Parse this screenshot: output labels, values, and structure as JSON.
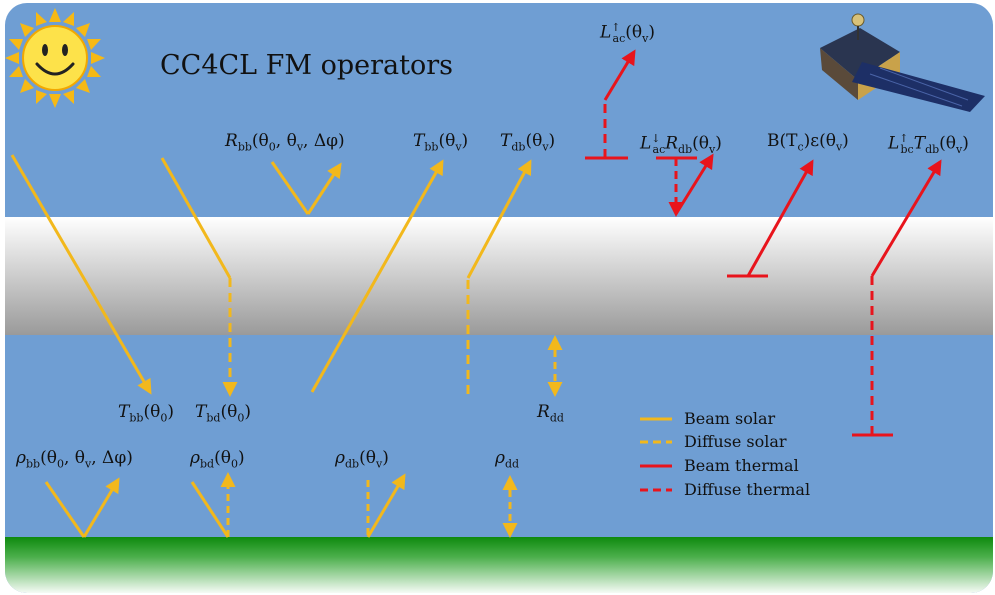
{
  "title": "CC4CL FM operators",
  "colors": {
    "sky": "#6f9ed3",
    "solar": "#f2b81c",
    "thermal": "#e8141c",
    "ground": "#1a9a1a"
  },
  "icons": {
    "sun": "sun-icon",
    "satellite": "satellite-icon"
  },
  "labels": {
    "L_ac_up": {
      "sym": "L",
      "sup": "↑",
      "sub": "ac",
      "arg": "(θ",
      "argsub": "v",
      "tail": ")"
    },
    "R_bb": {
      "sym": "R",
      "sub": "bb",
      "arg": "(θ",
      "argsub": "0",
      "rest": ", θ",
      "restsub": "v",
      "tail": ", Δφ)"
    },
    "T_bb_v": {
      "sym": "T",
      "sub": "bb",
      "arg": "(θ",
      "argsub": "v",
      "tail": ")"
    },
    "T_db_v": {
      "sym": "T",
      "sub": "db",
      "arg": "(θ",
      "argsub": "v",
      "tail": ")"
    },
    "L_ac_down_R_db": {
      "sym": "L",
      "sup": "↓",
      "sub": "ac",
      "sym2": "R",
      "sub2": "db",
      "arg": "(θ",
      "argsub": "v",
      "tail": ")"
    },
    "B_Tc_eps": {
      "text1": "B(T",
      "sub": "c",
      "text2": ")ε(θ",
      "sub2": "v",
      "tail": ")"
    },
    "L_bc_up_T_db": {
      "sym": "L",
      "sup": "↑",
      "sub": "bc",
      "sym2": "T",
      "sub2": "db",
      "arg": "(θ",
      "argsub": "v",
      "tail": ")"
    },
    "T_bb_0": {
      "sym": "T",
      "sub": "bb",
      "arg": "(θ",
      "argsub": "0",
      "tail": ")"
    },
    "T_bd_0": {
      "sym": "T",
      "sub": "bd",
      "arg": "(θ",
      "argsub": "0",
      "tail": ")"
    },
    "R_dd": {
      "sym": "R",
      "sub": "dd"
    },
    "rho_bb": {
      "sym": "ρ",
      "sub": "bb",
      "arg": "(θ",
      "argsub": "0",
      "rest": ", θ",
      "restsub": "v",
      "tail": ", Δφ)"
    },
    "rho_bd": {
      "sym": "ρ",
      "sub": "bd",
      "arg": "(θ",
      "argsub": "0",
      "tail": ")"
    },
    "rho_db": {
      "sym": "ρ",
      "sub": "db",
      "arg": "(θ",
      "argsub": "v",
      "tail": ")"
    },
    "rho_dd": {
      "sym": "ρ",
      "sub": "dd"
    }
  },
  "legend": [
    {
      "label": "Beam solar",
      "color": "solar",
      "style": "solid"
    },
    {
      "label": "Diffuse solar",
      "color": "solar",
      "style": "dashed"
    },
    {
      "label": "Beam thermal",
      "color": "thermal",
      "style": "solid"
    },
    {
      "label": "Diffuse thermal",
      "color": "thermal",
      "style": "dashed"
    }
  ]
}
